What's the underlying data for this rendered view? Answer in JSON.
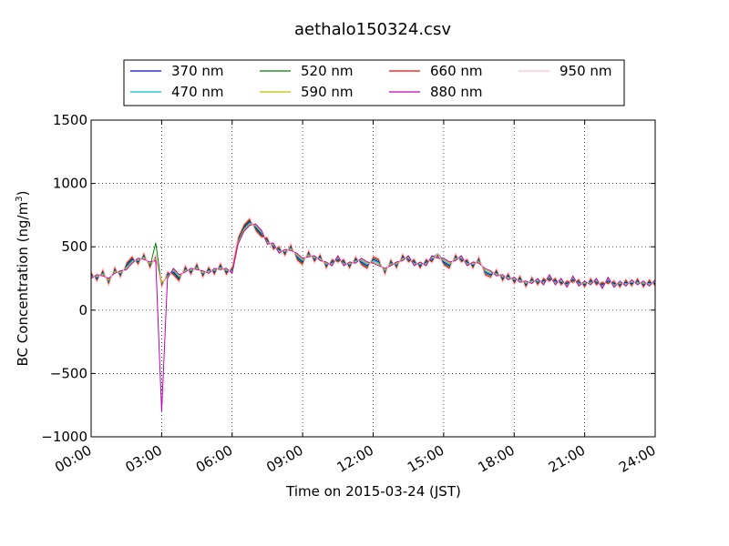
{
  "chart_data": {
    "type": "line",
    "title": "aethalo150324.csv",
    "xlabel": "Time on 2015-03-24 (JST)",
    "ylabel_main": "BC Concentration (ng/m",
    "ylabel_sup": "3",
    "ylabel_end": ")",
    "xlim": [
      0,
      24
    ],
    "ylim": [
      -1000,
      1500
    ],
    "x_ticks": [
      0,
      3,
      6,
      9,
      12,
      15,
      18,
      21,
      24
    ],
    "x_tick_labels": [
      "00:00",
      "03:00",
      "06:00",
      "09:00",
      "12:00",
      "15:00",
      "18:00",
      "21:00",
      "24:00"
    ],
    "y_ticks": [
      -1000,
      -500,
      0,
      500,
      1000,
      1500
    ],
    "y_tick_labels": [
      "−1000",
      "−500",
      "0",
      "500",
      "1000",
      "1500"
    ],
    "grid": true,
    "legend_placement": "top-center",
    "x_values": [
      0.0,
      0.25,
      0.5,
      0.75,
      1.0,
      1.25,
      1.5,
      1.75,
      2.0,
      2.25,
      2.5,
      2.75,
      3.0,
      3.25,
      3.5,
      3.75,
      4.0,
      4.25,
      4.5,
      4.75,
      5.0,
      5.25,
      5.5,
      5.75,
      6.0,
      6.25,
      6.5,
      6.75,
      7.0,
      7.25,
      7.5,
      7.75,
      8.0,
      8.25,
      8.5,
      8.75,
      9.0,
      9.25,
      9.5,
      9.75,
      10.0,
      10.25,
      10.5,
      10.75,
      11.0,
      11.25,
      11.5,
      11.75,
      12.0,
      12.25,
      12.5,
      12.75,
      13.0,
      13.25,
      13.5,
      13.75,
      14.0,
      14.25,
      14.5,
      14.75,
      15.0,
      15.25,
      15.5,
      15.75,
      16.0,
      16.25,
      16.5,
      16.75,
      17.0,
      17.25,
      17.5,
      17.75,
      18.0,
      18.25,
      18.5,
      18.75,
      19.0,
      19.25,
      19.5,
      19.75,
      20.0,
      20.25,
      20.5,
      20.75,
      21.0,
      21.25,
      21.5,
      21.75,
      22.0,
      22.25,
      22.5,
      22.75,
      23.0,
      23.25,
      23.5,
      23.75,
      24.0
    ],
    "series": [
      {
        "name": "370 nm",
        "color": "#0000ff",
        "values": [
          280,
          250,
          300,
          220,
          320,
          280,
          350,
          400,
          380,
          430,
          350,
          420,
          200,
          280,
          300,
          250,
          330,
          300,
          350,
          280,
          320,
          300,
          350,
          300,
          320,
          550,
          650,
          700,
          650,
          600,
          550,
          500,
          480,
          450,
          500,
          420,
          380,
          450,
          400,
          420,
          350,
          380,
          400,
          380,
          350,
          400,
          380,
          350,
          400,
          380,
          300,
          380,
          350,
          420,
          400,
          380,
          350,
          380,
          400,
          420,
          380,
          350,
          420,
          400,
          380,
          350,
          400,
          300,
          280,
          300,
          250,
          270,
          230,
          250,
          200,
          240,
          220,
          230,
          250,
          230,
          220,
          210,
          240,
          220,
          200,
          230,
          220,
          200,
          230,
          210,
          200,
          220,
          210,
          230,
          200,
          220,
          210
        ]
      },
      {
        "name": "470 nm",
        "color": "#00bfbf",
        "values": [
          270,
          260,
          290,
          230,
          310,
          290,
          340,
          390,
          390,
          420,
          360,
          410,
          210,
          270,
          310,
          260,
          320,
          310,
          340,
          290,
          310,
          310,
          340,
          310,
          310,
          540,
          640,
          690,
          660,
          610,
          540,
          510,
          470,
          460,
          490,
          430,
          390,
          440,
          410,
          410,
          360,
          370,
          410,
          370,
          360,
          390,
          390,
          360,
          390,
          370,
          310,
          370,
          360,
          410,
          410,
          370,
          360,
          370,
          410,
          450,
          390,
          360,
          410,
          410,
          370,
          360,
          390,
          310,
          290,
          290,
          260,
          260,
          240,
          240,
          210,
          230,
          230,
          220,
          260,
          220,
          230,
          200,
          250,
          210,
          210,
          220,
          230,
          190,
          240,
          200,
          210,
          210,
          220,
          220,
          210,
          210,
          220
        ]
      },
      {
        "name": "520 nm",
        "color": "#008000",
        "values": [
          290,
          240,
          310,
          210,
          330,
          270,
          360,
          410,
          370,
          440,
          340,
          530,
          190,
          290,
          290,
          240,
          340,
          290,
          360,
          270,
          330,
          290,
          360,
          290,
          330,
          560,
          660,
          710,
          640,
          590,
          560,
          490,
          490,
          440,
          510,
          410,
          370,
          460,
          390,
          430,
          340,
          390,
          390,
          390,
          340,
          410,
          370,
          340,
          410,
          390,
          290,
          390,
          340,
          430,
          390,
          390,
          340,
          390,
          390,
          430,
          370,
          340,
          430,
          390,
          390,
          340,
          410,
          290,
          270,
          310,
          240,
          280,
          220,
          260,
          190,
          250,
          210,
          240,
          240,
          240,
          210,
          220,
          230,
          230,
          190,
          240,
          210,
          210,
          220,
          220,
          190,
          230,
          200,
          240,
          190,
          230,
          200
        ]
      },
      {
        "name": "590 nm",
        "color": "#bfbf00",
        "values": [
          260,
          270,
          280,
          240,
          300,
          300,
          330,
          380,
          400,
          410,
          370,
          400,
          220,
          260,
          320,
          270,
          310,
          320,
          330,
          300,
          300,
          320,
          330,
          320,
          300,
          530,
          630,
          680,
          670,
          620,
          530,
          520,
          460,
          470,
          480,
          440,
          400,
          430,
          420,
          400,
          370,
          360,
          420,
          360,
          370,
          380,
          400,
          370,
          380,
          360,
          320,
          360,
          370,
          400,
          420,
          360,
          370,
          360,
          420,
          420,
          400,
          370,
          400,
          420,
          360,
          370,
          380,
          320,
          300,
          280,
          270,
          250,
          250,
          230,
          220,
          220,
          240,
          210,
          270,
          210,
          240,
          190,
          260,
          200,
          220,
          210,
          240,
          180,
          250,
          190,
          220,
          200,
          230,
          210,
          220,
          200,
          230
        ]
      },
      {
        "name": "660 nm",
        "color": "#ff0000",
        "values": [
          300,
          230,
          320,
          200,
          340,
          260,
          370,
          420,
          360,
          450,
          330,
          430,
          180,
          300,
          280,
          230,
          350,
          280,
          370,
          260,
          340,
          280,
          370,
          280,
          340,
          570,
          670,
          720,
          630,
          580,
          570,
          480,
          500,
          430,
          520,
          400,
          360,
          470,
          380,
          440,
          330,
          400,
          380,
          400,
          330,
          420,
          360,
          330,
          420,
          400,
          280,
          400,
          330,
          440,
          380,
          400,
          330,
          400,
          380,
          440,
          360,
          330,
          440,
          380,
          400,
          330,
          420,
          280,
          260,
          320,
          230,
          290,
          210,
          270,
          180,
          260,
          200,
          250,
          230,
          250,
          200,
          230,
          220,
          240,
          180,
          250,
          200,
          220,
          210,
          230,
          180,
          240,
          190,
          250,
          180,
          240,
          190
        ]
      },
      {
        "name": "880 nm",
        "color": "#bf00bf",
        "values": [
          250,
          280,
          270,
          250,
          290,
          310,
          320,
          370,
          410,
          400,
          380,
          390,
          -800,
          250,
          330,
          280,
          300,
          330,
          320,
          310,
          290,
          330,
          320,
          330,
          290,
          520,
          620,
          670,
          680,
          630,
          520,
          530,
          450,
          480,
          470,
          450,
          410,
          420,
          430,
          390,
          380,
          350,
          430,
          350,
          380,
          370,
          410,
          380,
          370,
          350,
          330,
          350,
          380,
          390,
          430,
          350,
          380,
          350,
          430,
          410,
          410,
          380,
          390,
          430,
          350,
          380,
          370,
          330,
          310,
          270,
          280,
          240,
          260,
          220,
          230,
          210,
          250,
          200,
          280,
          200,
          250,
          180,
          270,
          190,
          230,
          200,
          250,
          170,
          260,
          180,
          230,
          190,
          240,
          200,
          230,
          190,
          240
        ]
      },
      {
        "name": "950 nm",
        "color": "#ffc0cb",
        "values": [
          310,
          220,
          330,
          190,
          350,
          250,
          380,
          430,
          350,
          460,
          320,
          440,
          170,
          310,
          270,
          220,
          360,
          270,
          380,
          250,
          350,
          270,
          380,
          270,
          350,
          580,
          680,
          730,
          620,
          570,
          580,
          470,
          510,
          420,
          530,
          390,
          350,
          480,
          370,
          450,
          320,
          410,
          370,
          410,
          320,
          430,
          350,
          320,
          430,
          410,
          270,
          410,
          320,
          450,
          370,
          410,
          320,
          410,
          370,
          450,
          350,
          320,
          450,
          370,
          410,
          320,
          430,
          270,
          250,
          330,
          220,
          300,
          200,
          280,
          170,
          270,
          190,
          260,
          220,
          260,
          190,
          240,
          210,
          250,
          170,
          260,
          190,
          230,
          200,
          240,
          170,
          250,
          180,
          260,
          170,
          250,
          180
        ]
      }
    ]
  }
}
